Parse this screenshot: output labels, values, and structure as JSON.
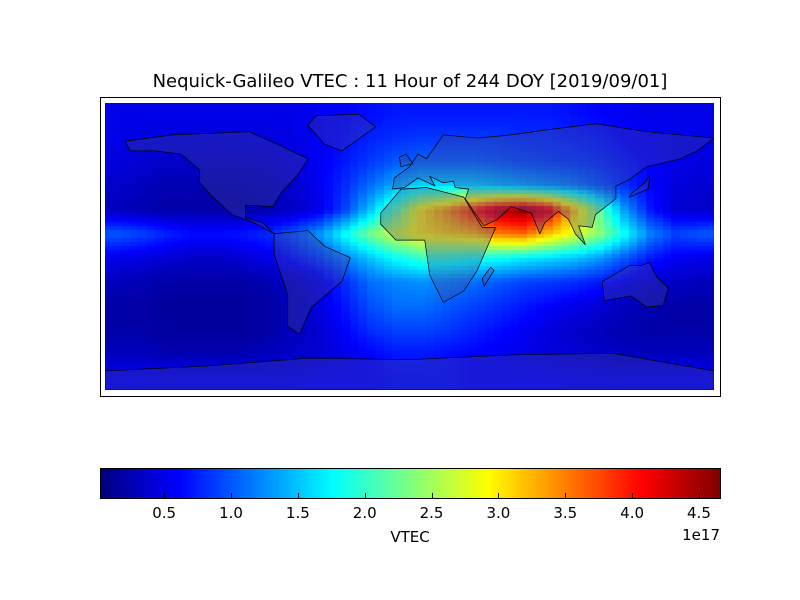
{
  "chart_data": {
    "type": "heatmap",
    "title": "Nequick-Galileo VTEC : 11 Hour of 244 DOY [2019/09/01]",
    "x": [
      -172.5,
      -157.5,
      -142.5,
      -127.5,
      -112.5,
      -97.5,
      -82.5,
      -67.5,
      -52.5,
      -37.5,
      -22.5,
      -7.5,
      7.5,
      22.5,
      37.5,
      52.5,
      67.5,
      82.5,
      97.5,
      112.5,
      127.5,
      142.5,
      157.5,
      172.5
    ],
    "y": [
      82.5,
      67.5,
      52.5,
      37.5,
      22.5,
      7.5,
      -7.5,
      -22.5,
      -37.5,
      -52.5,
      -67.5,
      -82.5
    ],
    "z": [
      [
        0.5,
        0.5,
        0.5,
        0.5,
        0.5,
        0.5,
        0.5,
        0.5,
        0.55,
        0.6,
        0.65,
        0.7,
        0.7,
        0.7,
        0.7,
        0.7,
        0.7,
        0.7,
        0.65,
        0.6,
        0.55,
        0.5,
        0.5,
        0.5
      ],
      [
        0.5,
        0.45,
        0.45,
        0.45,
        0.45,
        0.45,
        0.45,
        0.5,
        0.55,
        0.65,
        0.75,
        0.8,
        0.85,
        0.85,
        0.85,
        0.85,
        0.8,
        0.8,
        0.75,
        0.7,
        0.6,
        0.55,
        0.5,
        0.5
      ],
      [
        0.45,
        0.4,
        0.35,
        0.35,
        0.35,
        0.35,
        0.4,
        0.45,
        0.55,
        0.7,
        0.85,
        1.0,
        1.05,
        1.05,
        1.05,
        1.0,
        0.95,
        0.9,
        0.85,
        0.8,
        0.7,
        0.6,
        0.5,
        0.45
      ],
      [
        0.35,
        0.3,
        0.25,
        0.25,
        0.25,
        0.25,
        0.3,
        0.4,
        0.55,
        0.8,
        1.1,
        1.4,
        1.6,
        1.6,
        1.6,
        1.5,
        1.4,
        1.3,
        1.2,
        1.0,
        0.8,
        0.6,
        0.45,
        0.4
      ],
      [
        0.3,
        0.25,
        0.2,
        0.2,
        0.2,
        0.2,
        0.25,
        0.35,
        0.5,
        0.9,
        1.5,
        2.2,
        3.0,
        3.4,
        3.9,
        4.4,
        4.6,
        4.2,
        3.2,
        2.2,
        1.3,
        0.7,
        0.4,
        0.35
      ],
      [
        1.0,
        0.9,
        0.75,
        0.65,
        0.65,
        0.7,
        0.8,
        1.0,
        1.3,
        1.8,
        2.3,
        2.7,
        3.0,
        3.1,
        3.2,
        3.5,
        3.6,
        3.2,
        2.8,
        2.4,
        1.8,
        1.2,
        0.9,
        1.0
      ],
      [
        0.5,
        0.45,
        0.4,
        0.35,
        0.35,
        0.4,
        0.5,
        0.7,
        0.9,
        1.2,
        1.5,
        1.8,
        2.0,
        2.0,
        1.9,
        1.8,
        1.7,
        1.6,
        1.5,
        1.3,
        1.0,
        0.7,
        0.55,
        0.5
      ],
      [
        0.3,
        0.25,
        0.2,
        0.2,
        0.2,
        0.2,
        0.25,
        0.35,
        0.5,
        0.8,
        1.1,
        1.2,
        1.25,
        1.2,
        1.1,
        1.0,
        0.9,
        0.85,
        0.8,
        0.7,
        0.55,
        0.4,
        0.35,
        0.3
      ],
      [
        0.2,
        0.2,
        0.15,
        0.15,
        0.15,
        0.15,
        0.2,
        0.3,
        0.45,
        0.7,
        0.95,
        1.1,
        1.1,
        1.0,
        0.9,
        0.8,
        0.7,
        0.6,
        0.5,
        0.4,
        0.3,
        0.25,
        0.2,
        0.2
      ],
      [
        0.2,
        0.2,
        0.15,
        0.15,
        0.15,
        0.15,
        0.2,
        0.3,
        0.4,
        0.6,
        0.8,
        0.9,
        0.9,
        0.85,
        0.75,
        0.65,
        0.55,
        0.45,
        0.35,
        0.3,
        0.25,
        0.2,
        0.2,
        0.2
      ],
      [
        0.3,
        0.3,
        0.25,
        0.25,
        0.25,
        0.25,
        0.3,
        0.35,
        0.4,
        0.5,
        0.6,
        0.7,
        0.7,
        0.65,
        0.6,
        0.55,
        0.5,
        0.45,
        0.4,
        0.35,
        0.3,
        0.3,
        0.3,
        0.3
      ],
      [
        0.55,
        0.55,
        0.55,
        0.55,
        0.55,
        0.55,
        0.55,
        0.55,
        0.6,
        0.6,
        0.6,
        0.65,
        0.65,
        0.65,
        0.6,
        0.6,
        0.6,
        0.6,
        0.55,
        0.55,
        0.55,
        0.55,
        0.55,
        0.55
      ]
    ],
    "zlim": [
      0.02,
      4.65
    ],
    "colormap": "jet",
    "colorbar": {
      "label": "VTEC",
      "exponent_label": "1e17",
      "ticks": [
        0.5,
        1.0,
        1.5,
        2.0,
        2.5,
        3.0,
        3.5,
        4.0,
        4.5
      ],
      "tick_labels": [
        "0.5",
        "1.0",
        "1.5",
        "2.0",
        "2.5",
        "3.0",
        "3.5",
        "4.0",
        "4.5"
      ],
      "orientation": "horizontal",
      "placement": "bottom"
    },
    "projection": "cylindrical world map with coastlines and country borders"
  }
}
